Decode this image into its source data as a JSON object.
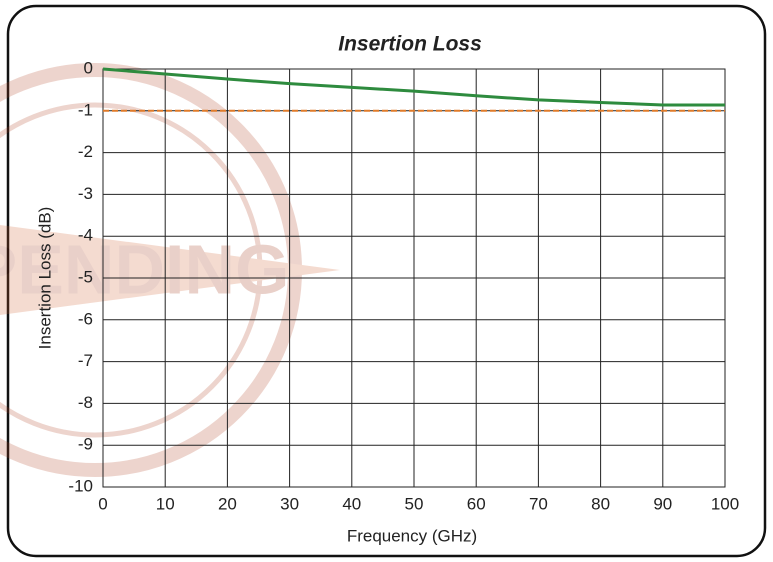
{
  "chart_data": {
    "type": "line",
    "title": "Insertion Loss",
    "xlabel": "Frequency (GHz)",
    "ylabel": "Insertion Loss (dB)",
    "watermark": "PENDING",
    "x": [
      0,
      10,
      20,
      30,
      40,
      50,
      60,
      70,
      80,
      90,
      100
    ],
    "series": [
      {
        "color": "#2e8b3e",
        "values": [
          0,
          -0.12,
          -0.24,
          -0.35,
          -0.44,
          -0.53,
          -0.64,
          -0.74,
          -0.8,
          -0.86,
          -0.86
        ]
      },
      {
        "color": "#e07b2a",
        "dashed": true,
        "values": [
          -1,
          -1,
          -1,
          -1,
          -1,
          -1,
          -1,
          -1,
          -1,
          -1,
          -1
        ]
      }
    ],
    "xlim": [
      0,
      100
    ],
    "xticks": [
      0,
      10,
      20,
      30,
      40,
      50,
      60,
      70,
      80,
      90,
      100
    ],
    "ylim": [
      -10,
      0
    ],
    "yticks": [
      0,
      -1,
      -2,
      -3,
      -4,
      -5,
      -6,
      -7,
      -8,
      -9,
      -10
    ],
    "grid": true
  }
}
